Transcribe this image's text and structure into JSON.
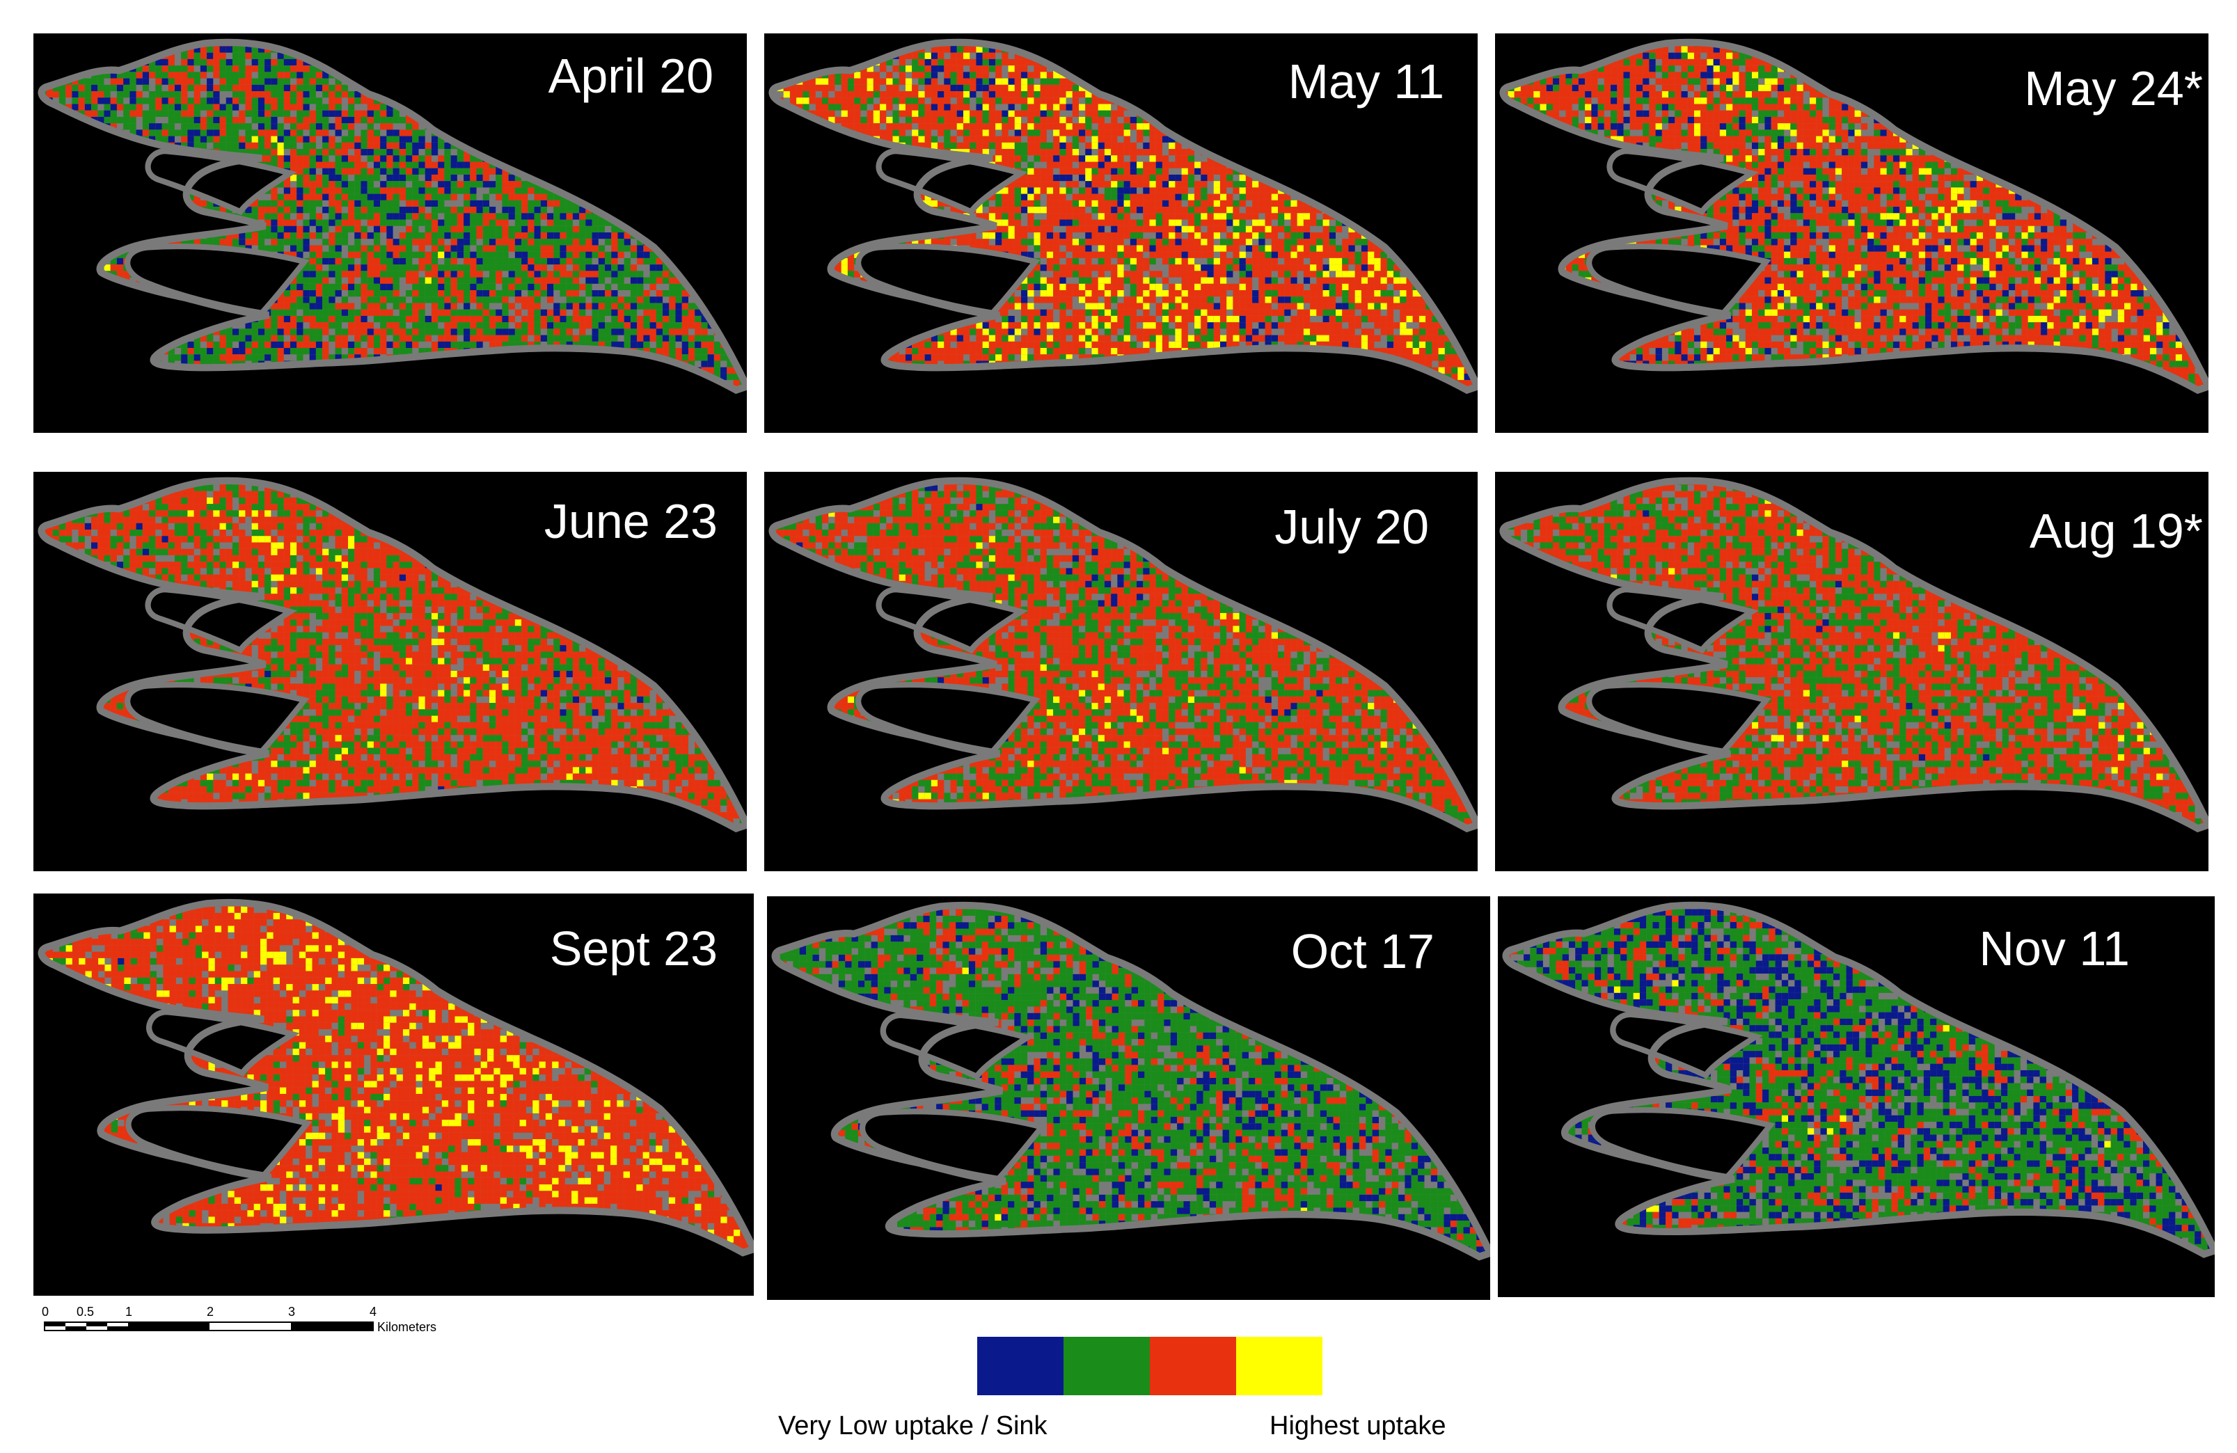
{
  "panels": [
    {
      "label": "April 20",
      "mix": [
        0.22,
        0.42,
        0.32,
        0.04
      ]
    },
    {
      "label": "May 11",
      "mix": [
        0.12,
        0.12,
        0.56,
        0.2
      ]
    },
    {
      "label": "May 24*",
      "mix": [
        0.16,
        0.16,
        0.54,
        0.14
      ]
    },
    {
      "label": "June 23",
      "mix": [
        0.05,
        0.26,
        0.6,
        0.09
      ]
    },
    {
      "label": "July 20",
      "mix": [
        0.05,
        0.3,
        0.57,
        0.08
      ]
    },
    {
      "label": "Aug 19*",
      "mix": [
        0.06,
        0.32,
        0.56,
        0.06
      ]
    },
    {
      "label": "Sept 23",
      "mix": [
        0.02,
        0.1,
        0.7,
        0.18
      ]
    },
    {
      "label": "Oct 17",
      "mix": [
        0.2,
        0.56,
        0.21,
        0.03
      ]
    },
    {
      "label": "Nov 11",
      "mix": [
        0.33,
        0.46,
        0.18,
        0.03
      ]
    }
  ],
  "scalebar": {
    "ticks": [
      "0",
      "0.5",
      "1",
      "2",
      "3",
      "4"
    ],
    "units": "Kilometers"
  },
  "legend": {
    "colors": [
      "#0a1a8c",
      "#1a8c1a",
      "#e8320f",
      "#ffff00"
    ],
    "low_label": "Very Low uptake / Sink",
    "high_label": "Highest uptake"
  },
  "colors": {
    "background": "#000000",
    "land_gray": "#7a7a7a"
  }
}
